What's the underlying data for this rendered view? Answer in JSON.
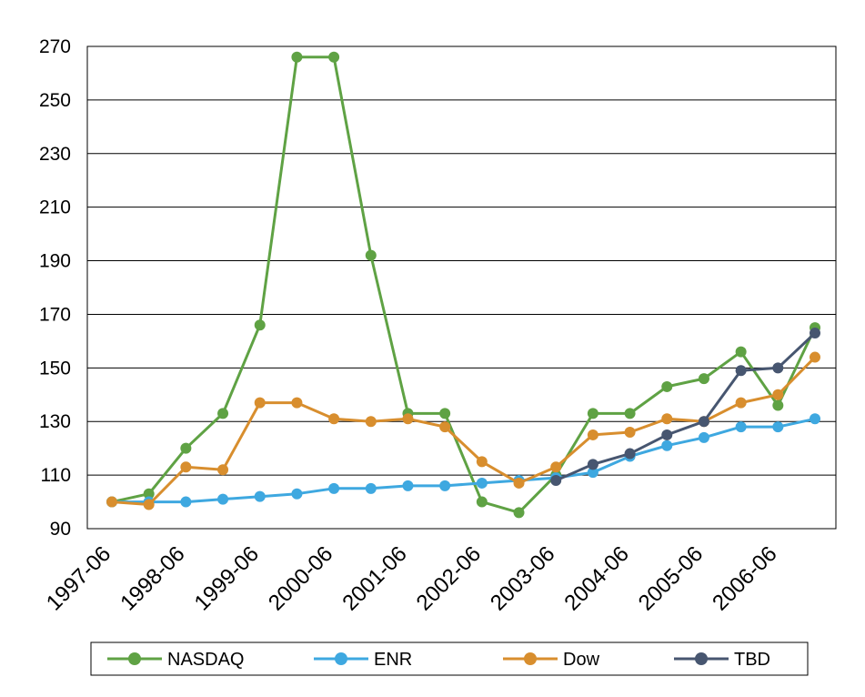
{
  "chart_data": {
    "type": "line",
    "title": "",
    "xlabel": "",
    "ylabel": "",
    "ylim": [
      90,
      270
    ],
    "yticks": [
      90,
      110,
      130,
      150,
      170,
      190,
      210,
      230,
      250,
      270
    ],
    "x": [
      "1997-06",
      "1997-12",
      "1998-06",
      "1998-12",
      "1999-06",
      "1999-12",
      "2000-06",
      "2000-12",
      "2001-06",
      "2001-12",
      "2002-06",
      "2002-12",
      "2003-06",
      "2003-12",
      "2004-06",
      "2004-12",
      "2005-06",
      "2005-12",
      "2006-06",
      "2006-12"
    ],
    "xtick_labels": [
      "1997-06",
      "1998-06",
      "1999-06",
      "2000-06",
      "2001-06",
      "2002-06",
      "2003-06",
      "2004-06",
      "2005-06",
      "2006-06"
    ],
    "grid": true,
    "legend_position": "bottom",
    "series": [
      {
        "name": "NASDAQ",
        "color": "#5FA244",
        "values": [
          100,
          103,
          120,
          133,
          166,
          266,
          266,
          192,
          133,
          133,
          100,
          96,
          110,
          133,
          133,
          143,
          146,
          156,
          136,
          165
        ]
      },
      {
        "name": "ENR",
        "color": "#3EA8E0",
        "values": [
          100,
          100,
          100,
          101,
          102,
          103,
          105,
          105,
          106,
          106,
          107,
          108,
          109,
          111,
          117,
          121,
          124,
          128,
          128,
          131
        ]
      },
      {
        "name": "Dow",
        "color": "#D88E2E",
        "values": [
          100,
          99,
          113,
          112,
          137,
          137,
          131,
          130,
          131,
          128,
          115,
          107,
          113,
          125,
          126,
          131,
          130,
          137,
          140,
          154
        ]
      },
      {
        "name": "TBD",
        "color": "#475670",
        "values": [
          null,
          null,
          null,
          null,
          null,
          null,
          null,
          null,
          null,
          null,
          null,
          null,
          108,
          114,
          118,
          125,
          130,
          149,
          150,
          163
        ]
      }
    ]
  }
}
